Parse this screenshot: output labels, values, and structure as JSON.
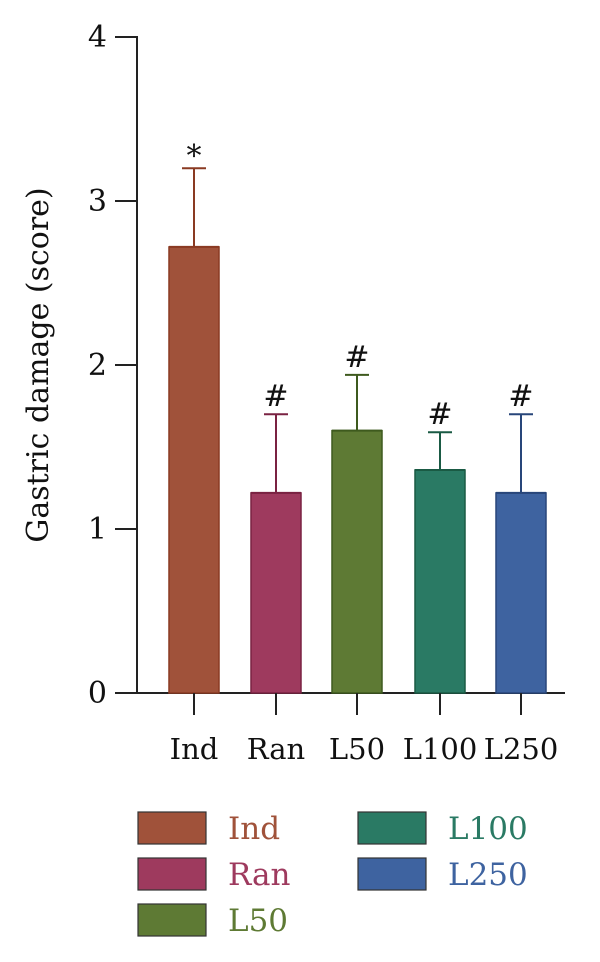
{
  "chart_data": {
    "type": "bar",
    "ylabel": "Gastric damage (score)",
    "xlabel": "",
    "ylim": [
      0,
      4
    ],
    "yticks": [
      "0",
      "1",
      "2",
      "3",
      "4"
    ],
    "categories": [
      "Ind",
      "Ran",
      "L50",
      "L100",
      "L250"
    ],
    "values": [
      2.72,
      1.22,
      1.6,
      1.36,
      1.22
    ],
    "errors": [
      0.48,
      0.48,
      0.34,
      0.23,
      0.48
    ],
    "annotations": [
      "*",
      "#",
      "#",
      "#",
      "#"
    ],
    "colors": [
      "#A0523A",
      "#9E3A5E",
      "#5E7A34",
      "#2A7A64",
      "#3E63A0"
    ],
    "error_colors": [
      "#8A3A22",
      "#7A2242",
      "#3E5A1E",
      "#1A5A44",
      "#28467A"
    ],
    "legend": [
      {
        "label": "Ind",
        "color": "#A0523A"
      },
      {
        "label": "Ran",
        "color": "#9E3A5E"
      },
      {
        "label": "L50",
        "color": "#5E7A34"
      },
      {
        "label": "L100",
        "color": "#2A7A64"
      },
      {
        "label": "L250",
        "color": "#3E63A0"
      }
    ]
  }
}
